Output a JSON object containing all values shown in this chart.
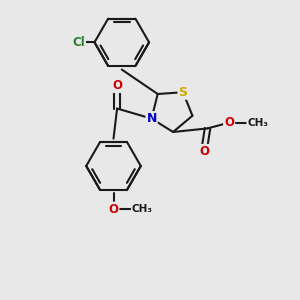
{
  "background_color": "#e8e8e8",
  "line_color": "#1a1a1a",
  "S_color": "#ccaa00",
  "N_color": "#0000cc",
  "O_color": "#cc0000",
  "Cl_color": "#2d7d2d",
  "bond_width": 1.5,
  "font_size_atom": 8.5,
  "xlim": [
    -1.6,
    1.4
  ],
  "ylim": [
    -2.5,
    1.6
  ]
}
